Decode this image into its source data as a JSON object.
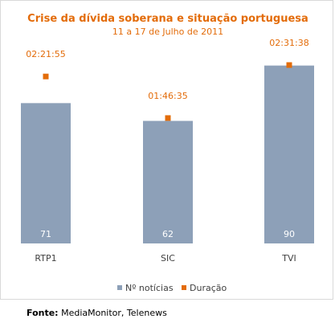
{
  "chart_data": {
    "type": "bar",
    "title": "Crise da dívida soberana e situação portuguesa",
    "subtitle": "11 a 17 de Julho de 2011",
    "categories": [
      "RTP1",
      "SIC",
      "TVI"
    ],
    "series": [
      {
        "name": "Nº notícias",
        "type": "bar",
        "values": [
          71,
          62,
          90
        ],
        "labels": [
          "71",
          "62",
          "90"
        ],
        "color": "#8da0b8"
      },
      {
        "name": "Duração",
        "type": "marker",
        "values_seconds": [
          8515,
          6395,
          9098
        ],
        "labels": [
          "02:21:55",
          "01:46:35",
          "02:31:38"
        ],
        "color": "#e36c0a"
      }
    ],
    "bar_axis_range": [
      0,
      100
    ],
    "duration_axis_range_seconds": [
      0,
      10080
    ],
    "grid": false,
    "legend_position": "bottom"
  },
  "source": {
    "label": "Fonte:",
    "text": " MediaMonitor, Telenews"
  }
}
